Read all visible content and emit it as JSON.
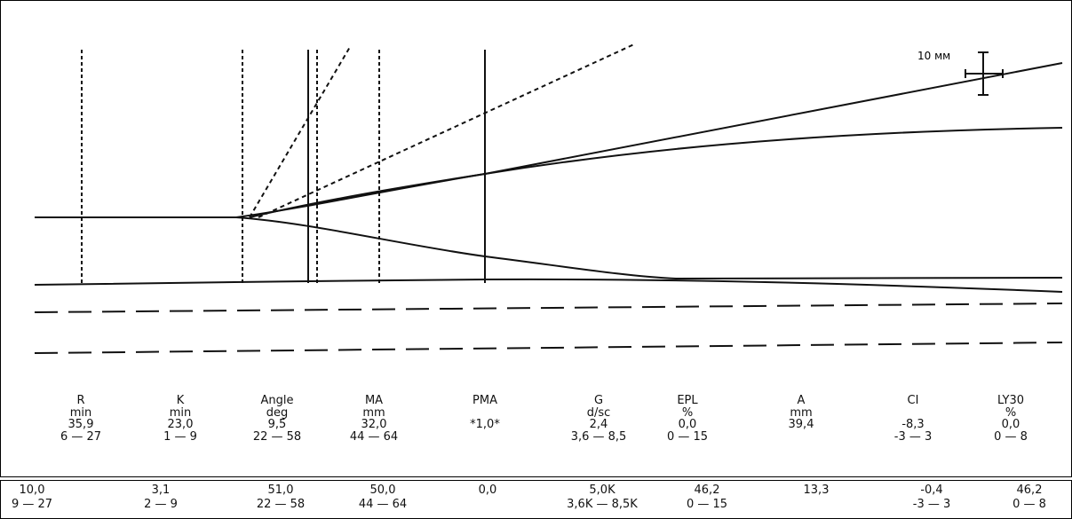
{
  "chart_data": {
    "type": "line",
    "scale_label": "10 мм",
    "parameters": [
      {
        "name": "R",
        "unit": "min",
        "value": "35,9",
        "range": "6 — 27"
      },
      {
        "name": "K",
        "unit": "min",
        "value": "23,0",
        "range": "1 — 9"
      },
      {
        "name": "Angle",
        "unit": "deg",
        "value": "9,5",
        "range": "22 — 58"
      },
      {
        "name": "MA",
        "unit": "mm",
        "value": "32,0",
        "range": "44 — 64"
      },
      {
        "name": "PMA",
        "unit": "",
        "value": "*1,0*",
        "range": ""
      },
      {
        "name": "G",
        "unit": "d/sc",
        "value": "2,4",
        "range": "3,6 — 8,5"
      },
      {
        "name": "EPL",
        "unit": "%",
        "value": "0,0",
        "range": "0 — 15"
      },
      {
        "name": "A",
        "unit": "mm",
        "value": "39,4",
        "range": ""
      },
      {
        "name": "CI",
        "unit": "",
        "value": "-8,3",
        "range": "-3 — 3"
      },
      {
        "name": "LY30",
        "unit": "%",
        "value": "0,0",
        "range": "0 — 8"
      }
    ],
    "bottom_row": [
      {
        "value": "10,0",
        "range": "9 — 27"
      },
      {
        "value": "3,1",
        "range": "2 — 9"
      },
      {
        "value": "51,0",
        "range": "22 — 58"
      },
      {
        "value": "50,0",
        "range": "44 — 64"
      },
      {
        "value": "0,0",
        "range": ""
      },
      {
        "value": "5,0K",
        "range": "3,6K — 8,5K"
      },
      {
        "value": "46,2",
        "range": "0 — 15"
      },
      {
        "value": "13,3",
        "range": ""
      },
      {
        "value": "-0,4",
        "range": "-3 — 3"
      },
      {
        "value": "46,2",
        "range": "0 — 8"
      }
    ]
  }
}
